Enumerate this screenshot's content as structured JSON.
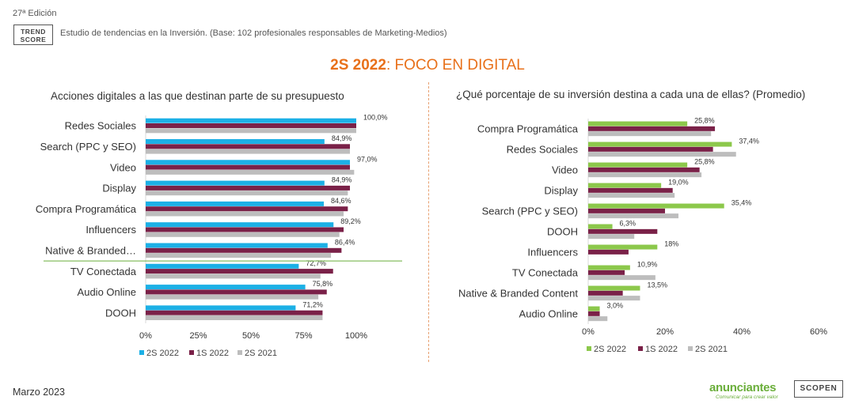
{
  "header": {
    "edition": "27ª Edición",
    "logo_line1": "TREND",
    "logo_line2": "SCORE",
    "subtitle": "Estudio de tendencias en la Inversión. (Base: 102 profesionales responsables de Marketing-Medios)",
    "title_bold": "2S 2022",
    "title_rest": ": FOCO EN DIGITAL"
  },
  "footer": {
    "date": "Marzo 2023",
    "logo_anunciantes": "anunciantes",
    "logo_anunciantes_tagline": "Comunicar para crear valor",
    "logo_scopen": "SCOPEN"
  },
  "colors": {
    "s2_2022": "#1cb0e6",
    "s1_2022": "#7a2148",
    "s2_2021": "#bdbdbd",
    "right_s2_2022": "#8cc84b",
    "accent": "#e8701a",
    "separator": "#6aae3a"
  },
  "chart_data": [
    {
      "type": "bar",
      "orientation": "horizontal",
      "title": "Acciones digitales a las que destinan parte de su presupuesto",
      "categories": [
        "Redes Sociales",
        "Search (PPC y SEO)",
        "Video",
        "Display",
        "Compra Programática",
        "Influencers",
        "Native & Branded…",
        "TV Conectada",
        "Audio Online",
        "DOOH"
      ],
      "series": [
        {
          "name": "2S 2022",
          "values": [
            100.0,
            84.9,
            97.0,
            84.9,
            84.6,
            89.2,
            86.4,
            72.7,
            75.8,
            71.2
          ]
        },
        {
          "name": "1S 2022",
          "values": [
            100,
            97,
            97,
            97,
            96,
            94,
            93,
            89,
            86,
            84
          ]
        },
        {
          "name": "2S 2021",
          "values": [
            100,
            97,
            99,
            96,
            94,
            92,
            88,
            83,
            82,
            84
          ]
        }
      ],
      "data_labels": [
        "100,0%",
        "84,9%",
        "97,0%",
        "84,9%",
        "84,6%",
        "89,2%",
        "86,4%",
        "72,7%",
        "75,8%",
        "71,2%"
      ],
      "xticks": [
        "0%",
        "25%",
        "50%",
        "75%",
        "100%"
      ],
      "xlim": [
        0,
        100
      ],
      "separator_after_index": 6,
      "legend": "bottom"
    },
    {
      "type": "bar",
      "orientation": "horizontal",
      "title": "¿Qué porcentaje de su inversión destina a cada una de ellas? (Promedio)",
      "categories": [
        "Compra Programática",
        "Redes Sociales",
        "Video",
        "Display",
        "Search (PPC y SEO)",
        "DOOH",
        "Influencers",
        "TV Conectada",
        "Native & Branded Content",
        "Audio Online"
      ],
      "series": [
        {
          "name": "2S 2022",
          "values": [
            25.8,
            37.4,
            25.8,
            19.0,
            35.4,
            6.3,
            18,
            10.9,
            13.5,
            3.0
          ]
        },
        {
          "name": "1S 2022",
          "values": [
            33,
            32.5,
            29,
            22,
            20,
            18,
            10.5,
            9.5,
            9,
            3
          ]
        },
        {
          "name": "2S 2021",
          "values": [
            32,
            38.5,
            29.5,
            22.5,
            23.5,
            12,
            0,
            17.5,
            13.5,
            5
          ]
        }
      ],
      "data_labels": [
        "25,8%",
        "37,4%",
        "25,8%",
        "19,0%",
        "35,4%",
        "6,3%",
        "18%",
        "10,9%",
        "13,5%",
        "3,0%"
      ],
      "xticks": [
        "0%",
        "20%",
        "40%",
        "60%"
      ],
      "xlim": [
        0,
        60
      ],
      "legend": "bottom"
    }
  ]
}
